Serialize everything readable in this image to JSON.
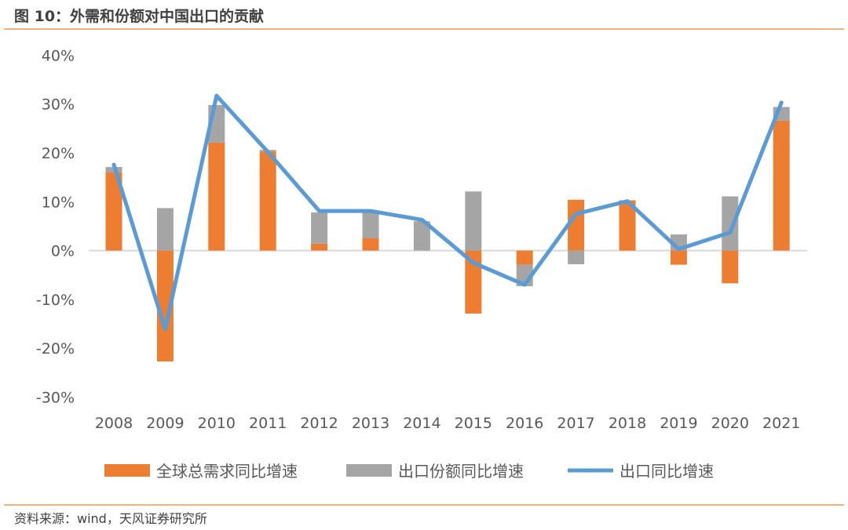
{
  "header": {
    "title": "图 10：外需和份额对中国出口的贡献"
  },
  "footer": {
    "source": "资料来源：wind，天风证券研究所"
  },
  "colors": {
    "orange": "#ED7D31",
    "gray": "#A5A5A5",
    "blue": "#5B9BD5",
    "accent_rule": "#F5B27E"
  },
  "chart_data": {
    "type": "bar",
    "title": "外需和份额对中国出口的贡献",
    "xlabel": "",
    "ylabel": "",
    "ylim": [
      -30,
      40
    ],
    "yticks": [
      40,
      30,
      20,
      10,
      0,
      -10,
      -20,
      -30
    ],
    "ytick_labels": [
      "40%",
      "30%",
      "20%",
      "10%",
      "0%",
      "-10%",
      "-20%",
      "-30%"
    ],
    "categories": [
      "2008",
      "2009",
      "2010",
      "2011",
      "2012",
      "2013",
      "2014",
      "2015",
      "2016",
      "2017",
      "2018",
      "2019",
      "2020",
      "2021"
    ],
    "legend_position": "bottom",
    "series": [
      {
        "name": "全球总需求同比增速",
        "kind": "stacked-bar",
        "values": [
          16.0,
          -22.7,
          22.1,
          20.3,
          1.4,
          2.5,
          0,
          -12.9,
          -2.9,
          10.4,
          10.3,
          -2.9,
          -6.7,
          26.6
        ]
      },
      {
        "name": "出口份额同比增速",
        "kind": "stacked-bar",
        "values": [
          1.1,
          8.7,
          7.7,
          0.3,
          6.4,
          5.4,
          6.0,
          12.1,
          -4.4,
          -2.8,
          0,
          3.3,
          11.1,
          2.8
        ]
      },
      {
        "name": "出口同比增速",
        "kind": "line",
        "values": [
          17.6,
          -16.1,
          31.7,
          20.2,
          8.1,
          8.1,
          6.3,
          -2.5,
          -7.0,
          7.5,
          10.1,
          0.3,
          3.7,
          30.3
        ]
      }
    ]
  }
}
